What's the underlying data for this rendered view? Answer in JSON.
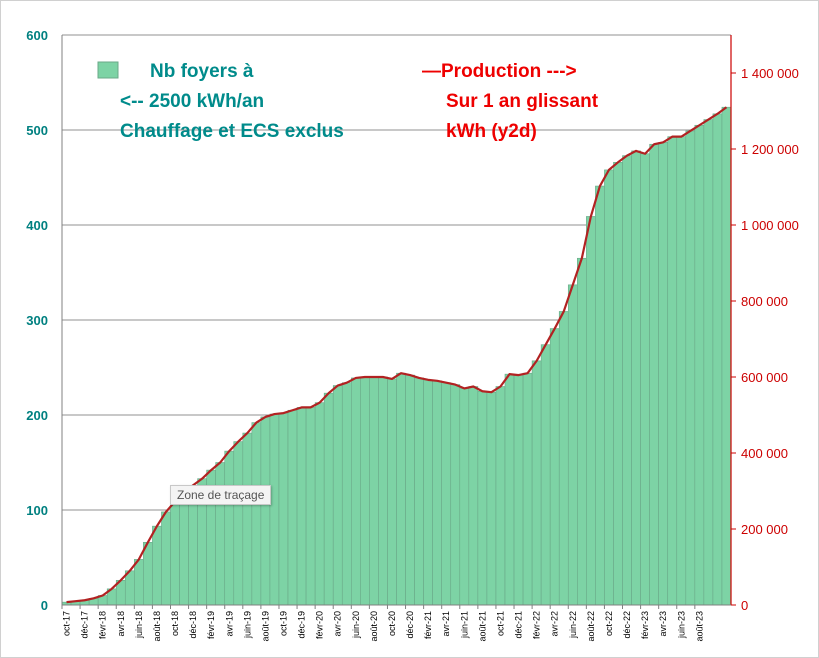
{
  "chart_data": {
    "type": "bar+line",
    "x_labels": [
      "oct-17",
      "déc-17",
      "févr-18",
      "avr-18",
      "juin-18",
      "août-18",
      "oct-18",
      "déc-18",
      "févr-19",
      "avr-19",
      "juin-19",
      "août-19",
      "oct-19",
      "déc-19",
      "févr-20",
      "avr-20",
      "juin-20",
      "août-20",
      "oct-20",
      "déc-20",
      "févr-21",
      "avr-21",
      "juin-21",
      "août-21",
      "oct-21",
      "déc-21",
      "févr-22",
      "avr-22",
      "juin-22",
      "août-22",
      "oct-22",
      "déc-22",
      "févr-23",
      "avr-23",
      "juin-23",
      "août-23"
    ],
    "series": [
      {
        "name": "Nb foyers à <-- 2500 kWh/an Chauffage et ECS exclus",
        "type": "bar",
        "axis": "left",
        "color": "#7dd3a5",
        "values": [
          3,
          4,
          5,
          7,
          10,
          17,
          26,
          36,
          48,
          66,
          83,
          98,
          109,
          119,
          126,
          133,
          142,
          150,
          162,
          172,
          181,
          192,
          198,
          201,
          202,
          205,
          208,
          208,
          213,
          223,
          231,
          234,
          239,
          240,
          240,
          240,
          238,
          244,
          242,
          239,
          237,
          236,
          234,
          232,
          228,
          230,
          225,
          224,
          230,
          243,
          242,
          244,
          257,
          274,
          291,
          309,
          337,
          365,
          409,
          441,
          458,
          466,
          473,
          478,
          475,
          485,
          487,
          493,
          493,
          499,
          505,
          511,
          517,
          524
        ]
      },
      {
        "name": "Production Sur 1 an glissant kWh (y2d)",
        "type": "line",
        "axis": "right",
        "color": "#b22222",
        "values": [
          7500,
          10000,
          12500,
          17500,
          25000,
          42500,
          65000,
          90000,
          120000,
          165000,
          207500,
          245000,
          272500,
          297500,
          315000,
          332500,
          355000,
          375000,
          405000,
          430000,
          452500,
          480000,
          495000,
          502500,
          505000,
          512500,
          520000,
          520000,
          532500,
          557500,
          577500,
          585000,
          597500,
          600000,
          600000,
          600000,
          595000,
          610000,
          605000,
          597500,
          592500,
          590000,
          585000,
          580000,
          570000,
          575000,
          562500,
          560000,
          575000,
          607500,
          605000,
          610000,
          642500,
          685000,
          727500,
          772500,
          842500,
          912500,
          1022500,
          1102500,
          1145000,
          1165000,
          1182500,
          1195000,
          1187500,
          1212500,
          1217500,
          1232500,
          1232500,
          1247500,
          1262500,
          1277500,
          1292500,
          1310000
        ]
      }
    ],
    "left_axis": {
      "min": 0,
      "max": 600,
      "ticks": [
        "0",
        "100",
        "200",
        "300",
        "400",
        "500",
        "600"
      ]
    },
    "right_axis": {
      "min": 0,
      "max": 1500000,
      "ticks": [
        "0",
        "200 000",
        "400 000",
        "600 000",
        "800 000",
        "1 000 000",
        "1 200 000",
        "1 400 000"
      ]
    },
    "grid": true,
    "legend": {
      "bar_line1": "Nb foyers à",
      "bar_line2": "<-- 2500 kWh/an",
      "bar_line3": "Chauffage et ECS exclus",
      "line_line1": "—Production   --->",
      "line_line2": "Sur 1 an  glissant",
      "line_line3": "kWh     (y2d)"
    },
    "colors": {
      "left_axis": "#008080",
      "right_axis": "#cc0000",
      "bars": "#7dd3a5",
      "line": "#b22222"
    }
  },
  "tooltip": "Zone de traçage"
}
